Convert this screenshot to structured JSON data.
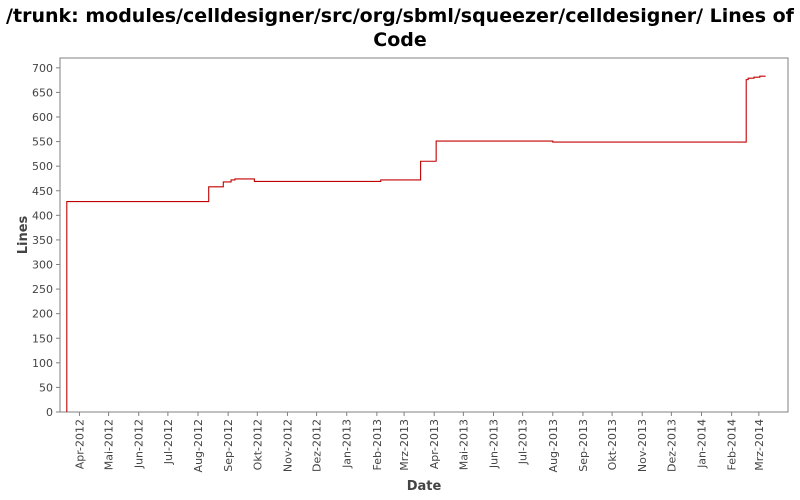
{
  "chart_data": {
    "type": "line",
    "title": "/trunk: modules/celldesigner/src/org/sbml/squeezer/celldesigner/ Lines of Code",
    "xlabel": "Date",
    "ylabel": "Lines",
    "ylim": [
      0,
      720
    ],
    "yticks": [
      0,
      50,
      100,
      150,
      200,
      250,
      300,
      350,
      400,
      450,
      500,
      550,
      600,
      650,
      700
    ],
    "xlim": [
      "2012-03-12",
      "2014-03-31"
    ],
    "xticks": [
      {
        "date": "2012-04-01",
        "label": "Apr-2012"
      },
      {
        "date": "2012-05-01",
        "label": "Mai-2012"
      },
      {
        "date": "2012-06-01",
        "label": "Jun-2012"
      },
      {
        "date": "2012-07-01",
        "label": "Jul-2012"
      },
      {
        "date": "2012-08-01",
        "label": "Aug-2012"
      },
      {
        "date": "2012-09-01",
        "label": "Sep-2012"
      },
      {
        "date": "2012-10-01",
        "label": "Okt-2012"
      },
      {
        "date": "2012-11-01",
        "label": "Nov-2012"
      },
      {
        "date": "2012-12-01",
        "label": "Dez-2012"
      },
      {
        "date": "2013-01-01",
        "label": "Jan-2013"
      },
      {
        "date": "2013-02-01",
        "label": "Feb-2013"
      },
      {
        "date": "2013-03-01",
        "label": "Mrz-2013"
      },
      {
        "date": "2013-04-01",
        "label": "Apr-2013"
      },
      {
        "date": "2013-05-01",
        "label": "Mai-2013"
      },
      {
        "date": "2013-06-01",
        "label": "Jun-2013"
      },
      {
        "date": "2013-07-01",
        "label": "Jul-2013"
      },
      {
        "date": "2013-08-01",
        "label": "Aug-2013"
      },
      {
        "date": "2013-09-01",
        "label": "Sep-2013"
      },
      {
        "date": "2013-10-01",
        "label": "Okt-2013"
      },
      {
        "date": "2013-11-01",
        "label": "Nov-2013"
      },
      {
        "date": "2013-12-01",
        "label": "Dez-2013"
      },
      {
        "date": "2014-01-01",
        "label": "Jan-2014"
      },
      {
        "date": "2014-02-01",
        "label": "Feb-2014"
      },
      {
        "date": "2014-03-01",
        "label": "Mrz-2014"
      }
    ],
    "grid": false,
    "legend": "none",
    "series": [
      {
        "step": true,
        "color": "#c00000",
        "points": [
          {
            "x": "2012-03-19",
            "y": 0
          },
          {
            "x": "2012-03-19",
            "y": 428
          },
          {
            "x": "2012-08-12",
            "y": 458
          },
          {
            "x": "2012-08-27",
            "y": 468
          },
          {
            "x": "2012-09-04",
            "y": 472
          },
          {
            "x": "2012-09-08",
            "y": 474
          },
          {
            "x": "2012-09-28",
            "y": 469
          },
          {
            "x": "2013-02-05",
            "y": 472
          },
          {
            "x": "2013-03-18",
            "y": 510
          },
          {
            "x": "2013-04-03",
            "y": 551
          },
          {
            "x": "2013-08-01",
            "y": 549
          },
          {
            "x": "2014-02-16",
            "y": 676
          },
          {
            "x": "2014-02-18",
            "y": 679
          },
          {
            "x": "2014-02-24",
            "y": 681
          },
          {
            "x": "2014-03-02",
            "y": 683
          },
          {
            "x": "2014-03-08",
            "y": 683
          }
        ]
      }
    ]
  }
}
